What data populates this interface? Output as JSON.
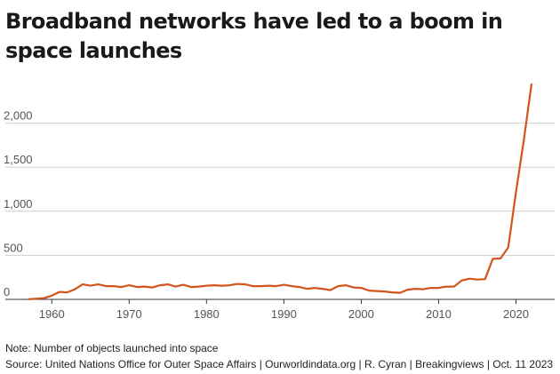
{
  "title": "Broadband networks have led to a boom in space launches",
  "note": "Note: Number of objects launched into space",
  "source": "Source: United Nations Office for Outer Space Affairs | Ourworldindata.org | R. Cyran | Breakingviews | Oct. 11 2023",
  "chart_data": {
    "type": "line",
    "title": "Broadband networks have led to a boom in space launches",
    "xlabel": "",
    "ylabel": "",
    "xlim": [
      1954,
      2025
    ],
    "ylim": [
      0,
      2500
    ],
    "y_ticks": [
      0,
      500,
      1000,
      1500,
      2000
    ],
    "y_tick_labels": [
      "0",
      "500",
      "1,000",
      "1,500",
      "2,000"
    ],
    "x_ticks": [
      1960,
      1970,
      1980,
      1990,
      2000,
      2010,
      2020
    ],
    "x_tick_labels": [
      "1960",
      "1970",
      "1980",
      "1990",
      "2000",
      "2010",
      "2020"
    ],
    "grid": "horizontal",
    "legend": "none",
    "line_color": "#d4541c",
    "series": [
      {
        "x": [
          1957,
          1958,
          1959,
          1960,
          1961,
          1962,
          1963,
          1964,
          1965,
          1966,
          1967,
          1968,
          1969,
          1970,
          1971,
          1972,
          1973,
          1974,
          1975,
          1976,
          1977,
          1978,
          1979,
          1980,
          1981,
          1982,
          1983,
          1984,
          1985,
          1986,
          1987,
          1988,
          1989,
          1990,
          1991,
          1992,
          1993,
          1994,
          1995,
          1996,
          1997,
          1998,
          1999,
          2000,
          2001,
          2002,
          2003,
          2004,
          2005,
          2006,
          2007,
          2008,
          2009,
          2010,
          2011,
          2012,
          2013,
          2014,
          2015,
          2016,
          2017,
          2018,
          2019,
          2020,
          2021,
          2022
        ],
        "values": [
          2,
          8,
          14,
          42,
          85,
          80,
          115,
          170,
          155,
          170,
          150,
          150,
          140,
          160,
          140,
          145,
          135,
          160,
          170,
          145,
          165,
          140,
          145,
          155,
          160,
          155,
          160,
          175,
          170,
          150,
          150,
          155,
          150,
          165,
          150,
          140,
          120,
          130,
          120,
          105,
          150,
          160,
          135,
          130,
          100,
          95,
          90,
          80,
          75,
          110,
          120,
          115,
          130,
          130,
          145,
          145,
          215,
          235,
          225,
          230,
          460,
          465,
          590,
          1220,
          1800,
          2440
        ]
      }
    ]
  }
}
